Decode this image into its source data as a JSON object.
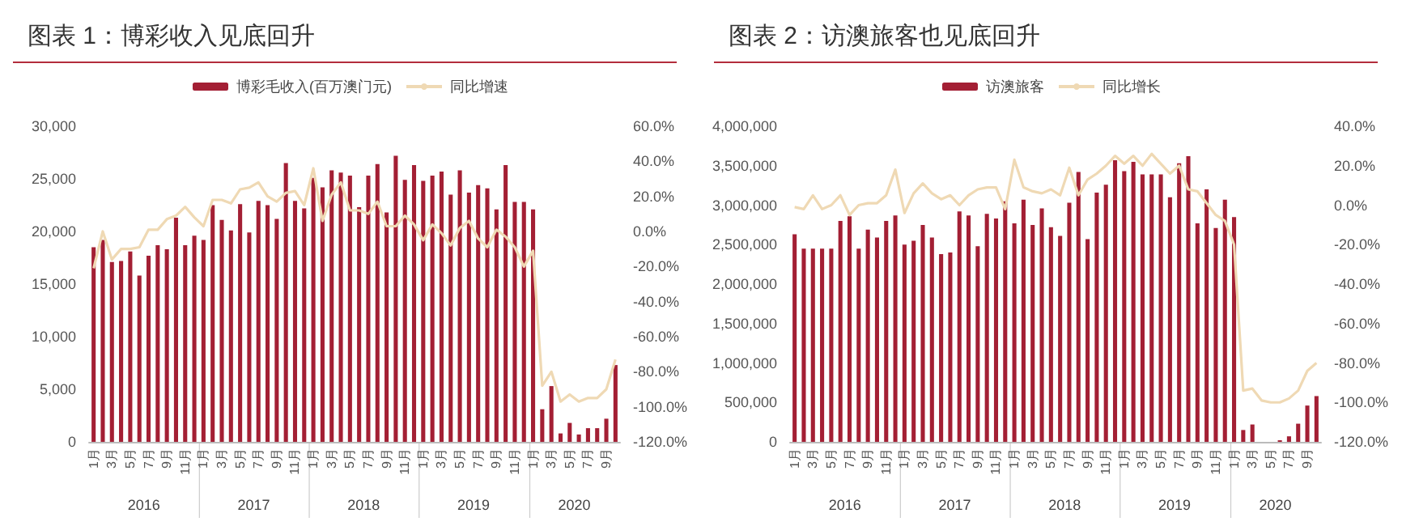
{
  "chart_data": [
    {
      "type": "bar",
      "title": "图表 1：博彩收入见底回升",
      "categories": [
        "1月",
        null,
        "3月",
        null,
        "5月",
        null,
        "7月",
        null,
        "9月",
        null,
        "11月",
        null,
        "1月",
        null,
        "3月",
        null,
        "5月",
        null,
        "7月",
        null,
        "9月",
        null,
        "11月",
        null,
        "1月",
        null,
        "3月",
        null,
        "5月",
        null,
        "7月",
        null,
        "9月",
        null,
        "11月",
        null,
        "1月",
        null,
        "3月",
        null,
        "5月",
        null,
        "7月",
        null,
        "9月",
        null,
        "11月",
        null,
        "1月",
        null,
        "3月",
        null,
        "5月",
        null,
        "7月",
        null,
        "9月",
        null
      ],
      "series": [
        {
          "name": "博彩毛收入(百万澳门元)",
          "color": "#a31f34",
          "values": [
            18500,
            19200,
            17100,
            17200,
            18100,
            15800,
            17700,
            18700,
            18300,
            21300,
            18700,
            19600,
            19200,
            22500,
            21100,
            20100,
            22600,
            19900,
            22900,
            22500,
            21200,
            26500,
            22900,
            22200,
            25100,
            24200,
            25800,
            25600,
            25300,
            22300,
            25300,
            26400,
            21800,
            27200,
            24900,
            26300,
            24800,
            25300,
            25700,
            23500,
            25800,
            23700,
            24400,
            24100,
            22100,
            26300,
            22800,
            22800,
            22100,
            3100,
            5300,
            800,
            1800,
            700,
            1300,
            1300,
            2200,
            7300
          ]
        },
        {
          "name": "同比增速",
          "type": "line",
          "axis": "y2",
          "color": "#efd9b4",
          "values": [
            -21,
            0,
            -16,
            -10,
            -10,
            -9,
            1,
            1,
            7,
            9,
            14,
            8,
            3,
            18,
            18,
            16,
            24,
            25,
            28,
            20,
            17,
            22,
            23,
            15,
            36,
            6,
            21,
            28,
            12,
            12,
            10,
            17,
            3,
            3,
            9,
            4,
            -5,
            4,
            -1,
            -8,
            2,
            6,
            -4,
            -9,
            1,
            -3,
            -9,
            -20,
            -11,
            -88,
            -80,
            -97,
            -93,
            -97,
            -95,
            -95,
            -90,
            -73
          ]
        }
      ],
      "ylim": [
        0,
        30000
      ],
      "yticks": [
        {
          "value": 0,
          "label": "0"
        },
        {
          "value": 5000,
          "label": "5,000"
        },
        {
          "value": 10000,
          "label": "10,000"
        },
        {
          "value": 15000,
          "label": "15,000"
        },
        {
          "value": 20000,
          "label": "20,000"
        },
        {
          "value": 25000,
          "label": "25,000"
        },
        {
          "value": 30000,
          "label": "30,000"
        }
      ],
      "y2lim": [
        -120,
        60
      ],
      "y2ticks": [
        {
          "value": -120,
          "label": "-120.0%"
        },
        {
          "value": -100,
          "label": "-100.0%"
        },
        {
          "value": -80,
          "label": "-80.0%"
        },
        {
          "value": -60,
          "label": "-60.0%"
        },
        {
          "value": -40,
          "label": "-40.0%"
        },
        {
          "value": -20,
          "label": "-20.0%"
        },
        {
          "value": 0,
          "label": "0.0%"
        },
        {
          "value": 20,
          "label": "20.0%"
        },
        {
          "value": 40,
          "label": "40.0%"
        },
        {
          "value": 60,
          "label": "60.0%"
        }
      ],
      "annotations": [
        "2016",
        "2017",
        "2018",
        "2019",
        "2020"
      ],
      "legend": "top",
      "grid": false,
      "marker": "none"
    },
    {
      "type": "bar",
      "title": "图表 2：访澳旅客也见底回升",
      "categories": [
        "1月",
        null,
        "3月",
        null,
        "5月",
        null,
        "7月",
        null,
        "9月",
        null,
        "11月",
        null,
        "1月",
        null,
        "3月",
        null,
        "5月",
        null,
        "7月",
        null,
        "9月",
        null,
        "11月",
        null,
        "1月",
        null,
        "3月",
        null,
        "5月",
        null,
        "7月",
        null,
        "9月",
        null,
        "11月",
        null,
        "1月",
        null,
        "3月",
        null,
        "5月",
        null,
        "7月",
        null,
        "9月",
        null,
        "11月",
        null,
        "1月",
        null,
        "3月",
        null,
        "5月",
        null,
        "7月",
        null,
        "9月",
        null
      ],
      "series": [
        {
          "name": "访澳旅客",
          "color": "#a31f34",
          "values": [
            2630000,
            2450000,
            2450000,
            2450000,
            2450000,
            2800000,
            2860000,
            2450000,
            2690000,
            2590000,
            2800000,
            2870000,
            2500000,
            2550000,
            2750000,
            2590000,
            2380000,
            2400000,
            2920000,
            2870000,
            2480000,
            2890000,
            2830000,
            3050000,
            2770000,
            3070000,
            2750000,
            2960000,
            2720000,
            2610000,
            3030000,
            3420000,
            2570000,
            3160000,
            3260000,
            3570000,
            3430000,
            3550000,
            3390000,
            3390000,
            3390000,
            3100000,
            3530000,
            3620000,
            2770000,
            3200000,
            2710000,
            3070000,
            2850000,
            150000,
            220000,
            null,
            null,
            20000,
            70000,
            230000,
            460000,
            580000
          ]
        },
        {
          "name": "同比增长",
          "type": "line",
          "axis": "y2",
          "color": "#efd9b4",
          "values": [
            -1,
            -2,
            5,
            -2,
            0,
            5,
            -5,
            0,
            1,
            1,
            5,
            18,
            -4,
            6,
            11,
            6,
            3,
            5,
            0,
            5,
            8,
            9,
            9,
            -2,
            23,
            9,
            7,
            6,
            8,
            5,
            19,
            5,
            13,
            16,
            20,
            25,
            21,
            25,
            20,
            26,
            21,
            16,
            20,
            8,
            7,
            1,
            -5,
            -8,
            -20,
            -94,
            -93,
            -99,
            -100,
            -100,
            -98,
            -94,
            -84,
            -80
          ]
        }
      ],
      "ylim": [
        0,
        4000000
      ],
      "yticks": [
        {
          "value": 0,
          "label": "0"
        },
        {
          "value": 500000,
          "label": "500,000"
        },
        {
          "value": 1000000,
          "label": "1,000,000"
        },
        {
          "value": 1500000,
          "label": "1,500,000"
        },
        {
          "value": 2000000,
          "label": "2,000,000"
        },
        {
          "value": 2500000,
          "label": "2,500,000"
        },
        {
          "value": 3000000,
          "label": "3,000,000"
        },
        {
          "value": 3500000,
          "label": "3,500,000"
        },
        {
          "value": 4000000,
          "label": "4,000,000"
        }
      ],
      "y2lim": [
        -120,
        40
      ],
      "y2ticks": [
        {
          "value": -120,
          "label": "-120.0%"
        },
        {
          "value": -100,
          "label": "-100.0%"
        },
        {
          "value": -80,
          "label": "-80.0%"
        },
        {
          "value": -60,
          "label": "-60.0%"
        },
        {
          "value": -40,
          "label": "-40.0%"
        },
        {
          "value": -20,
          "label": "-20.0%"
        },
        {
          "value": 0,
          "label": "0.0%"
        },
        {
          "value": 20,
          "label": "20.0%"
        },
        {
          "value": 40,
          "label": "40.0%"
        }
      ],
      "annotations": [
        "2016",
        "2017",
        "2018",
        "2019",
        "2020"
      ],
      "legend": "top",
      "grid": false,
      "marker": "none"
    }
  ]
}
